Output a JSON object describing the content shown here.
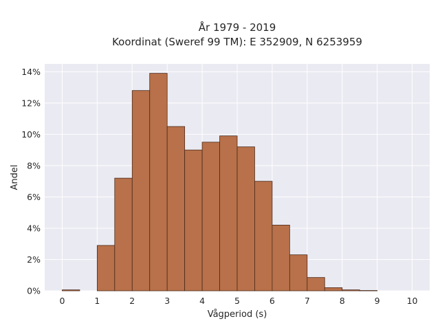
{
  "chart_data": {
    "type": "bar",
    "title_line1": "År 1979 - 2019",
    "title_line2": "Koordinat (Sweref 99 TM): E 352909, N 6253959",
    "xlabel": "Vågperiod (s)",
    "ylabel": "Andel",
    "xlim": [
      -0.5,
      10.5
    ],
    "ylim": [
      0,
      0.145
    ],
    "x_ticks": [
      0,
      1,
      2,
      3,
      4,
      5,
      6,
      7,
      8,
      9,
      10
    ],
    "x_tick_labels": [
      "0",
      "1",
      "2",
      "3",
      "4",
      "5",
      "6",
      "7",
      "8",
      "9",
      "10"
    ],
    "y_ticks": [
      0,
      0.02,
      0.04,
      0.06,
      0.08,
      0.1,
      0.12,
      0.14
    ],
    "y_tick_labels": [
      "0%",
      "2%",
      "4%",
      "6%",
      "8%",
      "10%",
      "12%",
      "14%"
    ],
    "grid": true,
    "bar_color": "#b8714a",
    "bar_edge_color": "#4a2a1a",
    "background_color": "#eaeaf2",
    "bins": [
      {
        "x0": 0.0,
        "x1": 0.5,
        "value": 0.0006
      },
      {
        "x0": 0.5,
        "x1": 1.0,
        "value": 0.0
      },
      {
        "x0": 1.0,
        "x1": 1.5,
        "value": 0.029
      },
      {
        "x0": 1.5,
        "x1": 2.0,
        "value": 0.072
      },
      {
        "x0": 2.0,
        "x1": 2.5,
        "value": 0.128
      },
      {
        "x0": 2.5,
        "x1": 3.0,
        "value": 0.139
      },
      {
        "x0": 3.0,
        "x1": 3.5,
        "value": 0.105
      },
      {
        "x0": 3.5,
        "x1": 4.0,
        "value": 0.09
      },
      {
        "x0": 4.0,
        "x1": 4.5,
        "value": 0.095
      },
      {
        "x0": 4.5,
        "x1": 5.0,
        "value": 0.099
      },
      {
        "x0": 5.0,
        "x1": 5.5,
        "value": 0.092
      },
      {
        "x0": 5.5,
        "x1": 6.0,
        "value": 0.07
      },
      {
        "x0": 6.0,
        "x1": 6.5,
        "value": 0.042
      },
      {
        "x0": 6.5,
        "x1": 7.0,
        "value": 0.023
      },
      {
        "x0": 7.0,
        "x1": 7.5,
        "value": 0.0085
      },
      {
        "x0": 7.5,
        "x1": 8.0,
        "value": 0.002
      },
      {
        "x0": 8.0,
        "x1": 8.5,
        "value": 0.0006
      },
      {
        "x0": 8.5,
        "x1": 9.0,
        "value": 0.0002
      }
    ]
  }
}
